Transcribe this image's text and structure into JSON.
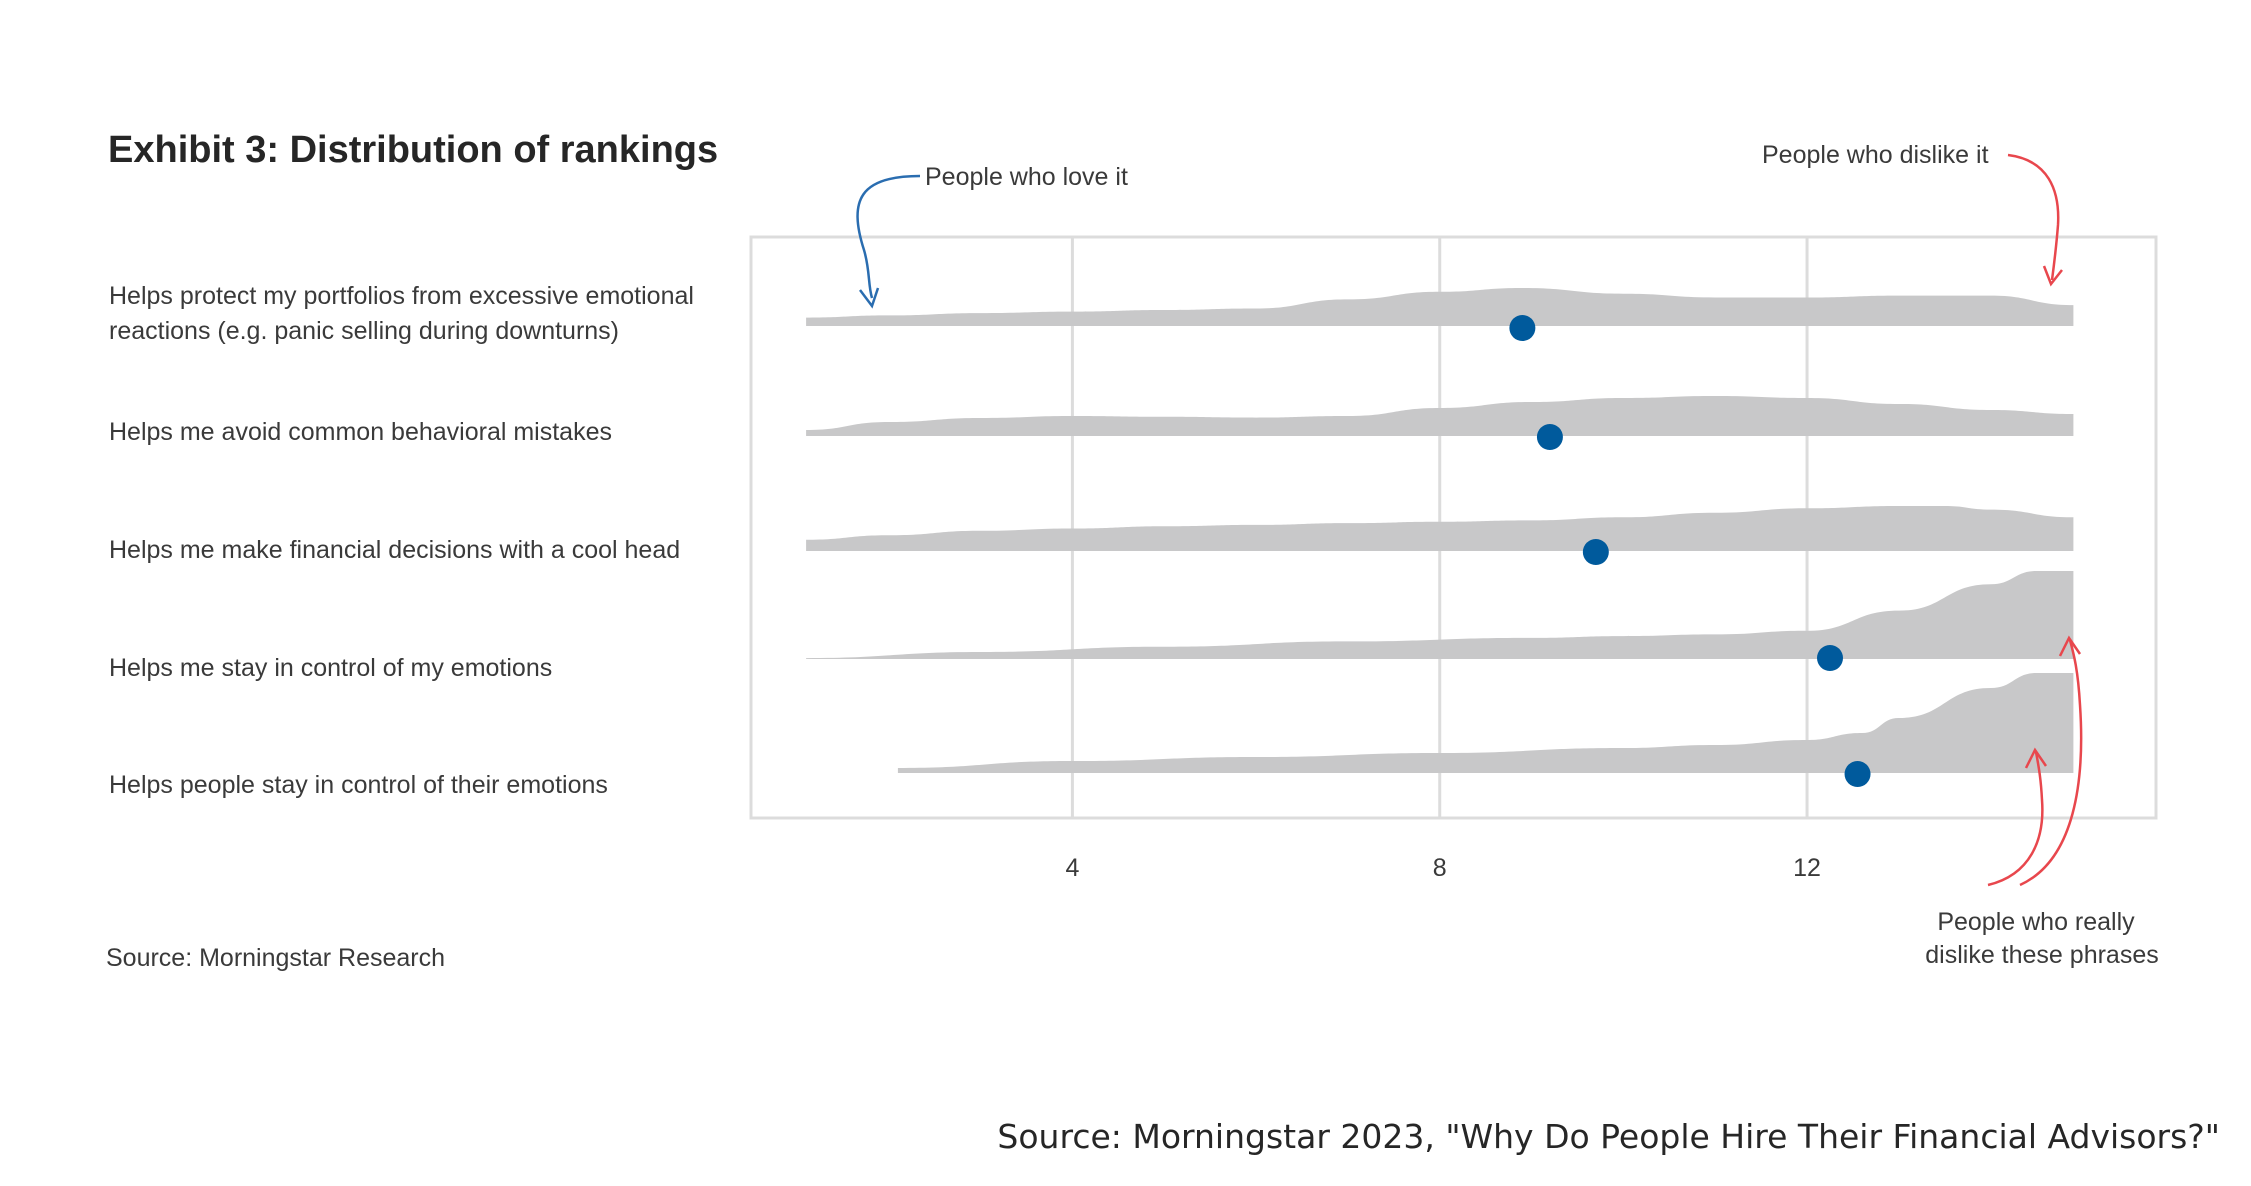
{
  "chart_data": {
    "type": "ridgeline",
    "title": "Exhibit 3: Distribution of rankings",
    "xlim": [
      0.5,
      15.8
    ],
    "x_ticks": [
      4,
      8,
      12
    ],
    "grid": true,
    "categories": [
      "Helps protect my portfolios from excessive emotional reactions (e.g. panic selling during downturns)",
      "Helps me avoid common behavioral mistakes",
      "Helps me make financial decisions with a cool head",
      "Helps me stay in control of my emotions",
      "Helps people stay in control of their emotions"
    ],
    "category_lines": [
      [
        "Helps protect my portfolios from excessive emotional",
        "reactions (e.g. panic selling during downturns)"
      ],
      [
        "Helps me avoid common behavioral mistakes"
      ],
      [
        "Helps me make financial decisions with a cool head"
      ],
      [
        "Helps me stay in control of my emotions"
      ],
      [
        "Helps people stay in control of their emotions"
      ]
    ],
    "means": [
      8.9,
      9.2,
      9.7,
      12.25,
      12.55
    ],
    "series": [
      {
        "x": [
          1.1,
          2,
          3,
          4,
          5,
          6,
          7,
          8,
          8.9,
          10,
          11,
          12,
          13,
          14,
          14.9
        ],
        "density": [
          0.22,
          0.28,
          0.34,
          0.38,
          0.42,
          0.46,
          0.7,
          0.9,
          1.0,
          0.85,
          0.75,
          0.75,
          0.8,
          0.8,
          0.55
        ]
      },
      {
        "x": [
          1.1,
          2,
          3,
          4,
          5,
          6,
          7,
          8,
          9,
          10,
          11,
          12,
          13,
          14,
          14.9
        ],
        "density": [
          0.15,
          0.35,
          0.45,
          0.5,
          0.48,
          0.46,
          0.5,
          0.7,
          0.85,
          0.95,
          1.0,
          0.95,
          0.8,
          0.65,
          0.55
        ]
      },
      {
        "x": [
          1.1,
          2,
          3,
          4,
          5,
          6,
          7,
          8,
          9,
          10,
          11,
          12,
          13,
          13.5,
          14,
          14.9
        ],
        "density": [
          0.25,
          0.35,
          0.45,
          0.5,
          0.55,
          0.58,
          0.62,
          0.65,
          0.68,
          0.75,
          0.85,
          0.95,
          1.0,
          1.0,
          0.92,
          0.75
        ]
      },
      {
        "x": [
          1.1,
          3,
          5,
          7,
          9,
          10,
          11,
          12,
          13,
          14,
          14.5,
          14.9
        ],
        "density": [
          0.01,
          0.08,
          0.14,
          0.2,
          0.24,
          0.26,
          0.28,
          0.32,
          0.55,
          0.85,
          1.0,
          1.0
        ]
      },
      {
        "x": [
          2.1,
          4,
          6,
          8,
          10,
          11,
          12,
          12.6,
          13,
          14,
          14.5,
          14.9
        ],
        "density": [
          0.05,
          0.12,
          0.16,
          0.2,
          0.25,
          0.28,
          0.33,
          0.4,
          0.55,
          0.85,
          1.0,
          1.0
        ]
      }
    ],
    "annotations": {
      "love": "People who love it",
      "dislike": "People who dislike it",
      "really_dislike": [
        "People who really",
        "dislike these phrases"
      ]
    },
    "source": "Source: Morningstar Research"
  },
  "footer": "Source: Morningstar 2023, \"Why Do People Hire Their Financial Advisors?\"",
  "colors": {
    "density": "#c8c8c9",
    "mean_dot": "#005a9c",
    "grid": "#dcdcdc",
    "arrow_blue": "#2a6db0",
    "arrow_red": "#e8474d"
  }
}
